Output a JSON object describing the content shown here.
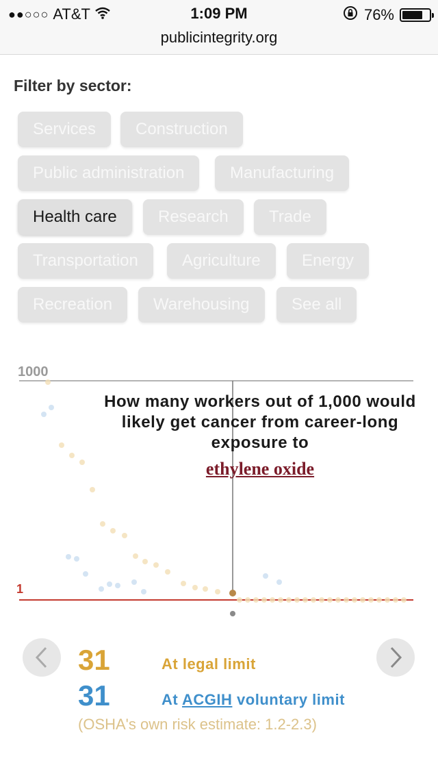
{
  "status_bar": {
    "signal": "●●○○○",
    "carrier": "AT&T",
    "time": "1:09 PM",
    "battery_text": "76%",
    "battery_level": 0.76
  },
  "browser": {
    "url": "publicintegrity.org"
  },
  "filter": {
    "title": "Filter by sector:",
    "sectors": [
      {
        "label": "Services",
        "active": false
      },
      {
        "label": "Construction",
        "active": false
      },
      {
        "label": "Public administration",
        "active": false
      },
      {
        "label": "Manufacturing",
        "active": false
      },
      {
        "label": "Health care",
        "active": true
      },
      {
        "label": "Research",
        "active": false
      },
      {
        "label": "Trade",
        "active": false
      },
      {
        "label": "Transportation",
        "active": false
      },
      {
        "label": "Agriculture",
        "active": false
      },
      {
        "label": "Energy",
        "active": false
      },
      {
        "label": "Recreation",
        "active": false
      },
      {
        "label": "Warehousing",
        "active": false
      },
      {
        "label": "See all",
        "active": false
      }
    ]
  },
  "chart": {
    "top_label": "1000",
    "bottom_label": "1",
    "question": "How many workers out of 1,000 would likely get cancer from career-long exposure to",
    "chemical": "ethylene oxide",
    "colors": {
      "legal": "#d9a437",
      "acgih": "#3f8fcb",
      "baseline": "#c43a2f"
    }
  },
  "stats": {
    "legal_value": "31",
    "legal_label": "At legal limit",
    "acgih_value": "31",
    "acgih_prefix": "At",
    "acgih_link": "ACGIH",
    "acgih_suffix": "voluntary limit",
    "footnote": "(OSHA's own risk estimate: 1.2-2.3)"
  },
  "icons": {
    "prev": "chevron-left-icon",
    "next": "chevron-right-icon",
    "wifi": "wifi-icon",
    "lock": "orientation-lock-icon"
  }
}
